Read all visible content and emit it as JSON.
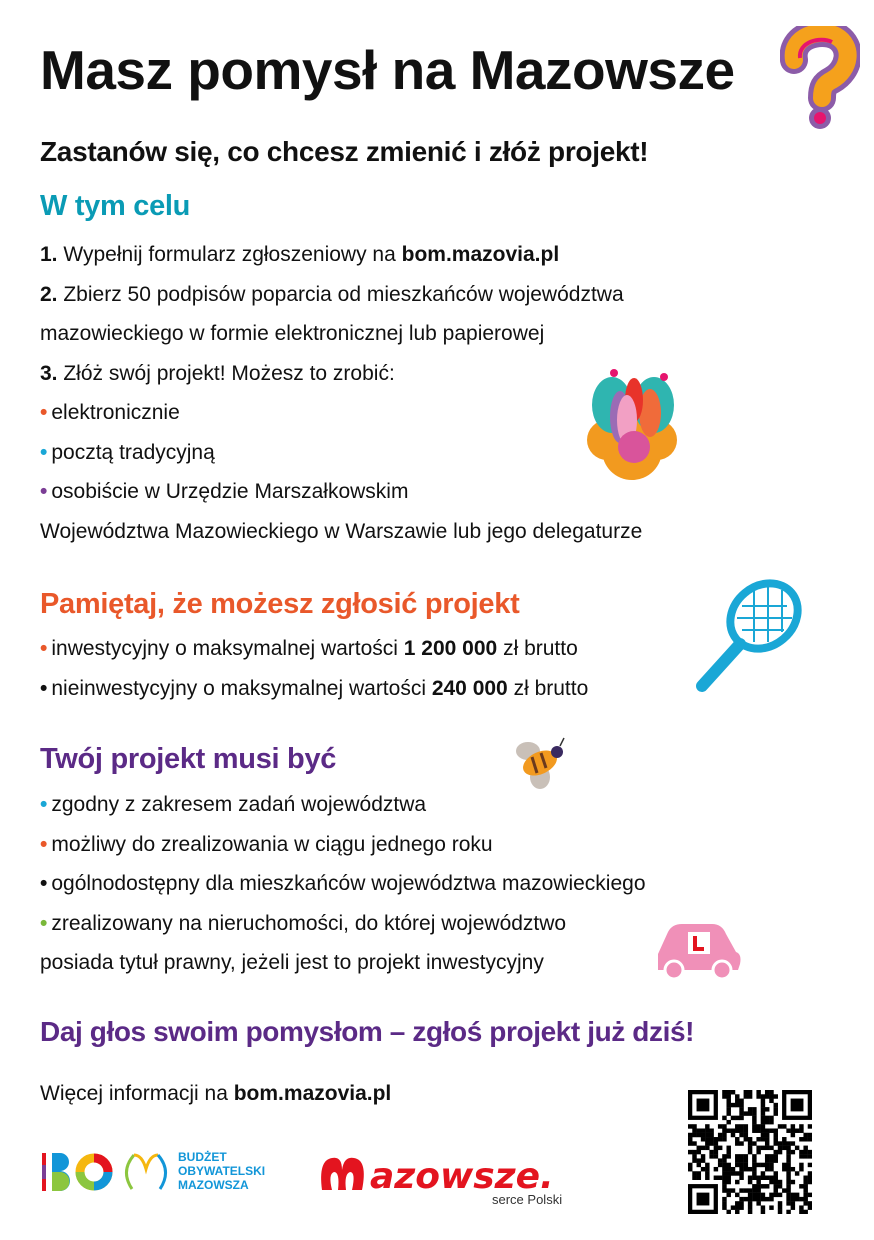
{
  "title": "Masz pomysł na Mazowsze",
  "subtitle": "Zastanów się, co chcesz zmienić i złóż projekt!",
  "section1": {
    "heading": "W tym celu",
    "color": "#0a9bb5",
    "steps": [
      {
        "num": "1.",
        "text": " Wypełnij formularz zgłoszeniowy na ",
        "bold": "bom.mazovia.pl"
      },
      {
        "num": "2.",
        "text": " Zbierz 50 podpisów poparcia od mieszkańców województwa"
      },
      {
        "text": "mazowieckiego w formie elektronicznej lub papierowej"
      },
      {
        "num": "3.",
        "text": " Złóż swój projekt! Możesz to zrobić:"
      }
    ],
    "bullets": [
      {
        "text": "elektronicznie",
        "color": "#e9582a"
      },
      {
        "text": "pocztą tradycyjną",
        "color": "#1aa7d6"
      },
      {
        "text": "osobiście w Urzędzie Marszałkowskim",
        "color": "#7b3d95"
      }
    ],
    "continuation": "Województwa Mazowieckiego w Warszawie lub jego delegaturze"
  },
  "section2": {
    "heading": "Pamiętaj, że możesz zgłosić projekt",
    "color": "#e9582a",
    "items": [
      {
        "pre": "inwestycyjny o maksymalnej wartości ",
        "bold": "1 200 000",
        "post": " zł brutto",
        "color": "#e9582a"
      },
      {
        "pre": "nieinwestycyjny o maksymalnej wartości ",
        "bold": "240 000",
        "post": " zł brutto",
        "color": "#111111"
      }
    ]
  },
  "section3": {
    "heading": "Twój projekt musi być",
    "color": "#5b2a86",
    "items": [
      {
        "text": "zgodny z zakresem zadań województwa",
        "color": "#1aa7d6"
      },
      {
        "text": "możliwy do zrealizowania w ciągu jednego roku",
        "color": "#e9582a"
      },
      {
        "text": "ogólnodostępny dla mieszkańców województwa mazowieckiego",
        "color": "#111111"
      },
      {
        "text": "zrealizowany na nieruchomości, do której województwo",
        "color": "#7ab83a"
      }
    ],
    "continuation": "posiada tytuł prawny, jeżeli jest to projekt inwestycyjny"
  },
  "cta": "Daj głos swoim pomysłom – zgłoś projekt już dziś!",
  "more_info": {
    "text": "Więcej informacji na ",
    "link": "bom.mazovia.pl"
  },
  "logos": {
    "bom": {
      "letters": "BOM",
      "text1": "BUDŻET",
      "text2": "OBYWATELSKI",
      "text3": "MAZOWSZA"
    },
    "mazowsze": {
      "word": "Mazowsze.",
      "tagline": "serce Polski",
      "color": "#e3141f"
    }
  },
  "icons": [
    "question-mark-icon",
    "flower-icon",
    "racket-icon",
    "bee-icon",
    "car-icon",
    "qr-code"
  ]
}
